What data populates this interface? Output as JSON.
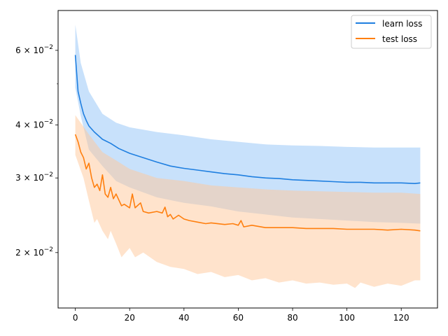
{
  "chart_data": {
    "type": "line",
    "title": "",
    "xlabel": "",
    "ylabel": "",
    "xlim": [
      -6.35,
      133.35
    ],
    "ylim": [
      0.0148,
      0.0745
    ],
    "yscale": "log",
    "x_ticks": [
      0,
      20,
      40,
      60,
      80,
      100,
      120
    ],
    "x_tick_labels": [
      "0",
      "20",
      "40",
      "60",
      "80",
      "100",
      "120"
    ],
    "y_major_ticks": [
      {
        "value": 0.02,
        "label": "2 × 10^-2",
        "base": "2 × 10",
        "exp": "−2"
      },
      {
        "value": 0.03,
        "label": "3 × 10^-2",
        "base": "3 × 10",
        "exp": "−2"
      },
      {
        "value": 0.04,
        "label": "4 × 10^-2",
        "base": "4 × 10",
        "exp": "−2"
      },
      {
        "value": 0.06,
        "label": "6 × 10^-2",
        "base": "6 × 10",
        "exp": "−2"
      }
    ],
    "y_minor_ticks": [
      0.05
    ],
    "grid": false,
    "legend": {
      "position": "upper-right"
    },
    "series": [
      {
        "name": "learn loss",
        "color": "#1f7fe0",
        "band_color": "#91c4f7",
        "mean": [
          [
            0,
            0.0585
          ],
          [
            1,
            0.048
          ],
          [
            2,
            0.045
          ],
          [
            3,
            0.0425
          ],
          [
            4,
            0.041
          ],
          [
            5,
            0.0398
          ],
          [
            7,
            0.0385
          ],
          [
            10,
            0.037
          ],
          [
            13,
            0.0362
          ],
          [
            16,
            0.0352
          ],
          [
            20,
            0.0343
          ],
          [
            25,
            0.0335
          ],
          [
            30,
            0.0327
          ],
          [
            35,
            0.032
          ],
          [
            40,
            0.0316
          ],
          [
            45,
            0.0313
          ],
          [
            50,
            0.031
          ],
          [
            55,
            0.0307
          ],
          [
            60,
            0.0305
          ],
          [
            65,
            0.0302
          ],
          [
            70,
            0.03
          ],
          [
            75,
            0.0299
          ],
          [
            80,
            0.0297
          ],
          [
            85,
            0.0296
          ],
          [
            90,
            0.0295
          ],
          [
            95,
            0.0294
          ],
          [
            100,
            0.0293
          ],
          [
            105,
            0.0293
          ],
          [
            110,
            0.0292
          ],
          [
            115,
            0.0292
          ],
          [
            120,
            0.0292
          ],
          [
            125,
            0.0291
          ],
          [
            127,
            0.0292
          ]
        ],
        "upper": [
          [
            0,
            0.069
          ],
          [
            2,
            0.056
          ],
          [
            5,
            0.048
          ],
          [
            10,
            0.0425
          ],
          [
            15,
            0.0405
          ],
          [
            20,
            0.0395
          ],
          [
            30,
            0.0385
          ],
          [
            40,
            0.0378
          ],
          [
            50,
            0.037
          ],
          [
            60,
            0.0365
          ],
          [
            70,
            0.036
          ],
          [
            80,
            0.0358
          ],
          [
            90,
            0.0357
          ],
          [
            100,
            0.0355
          ],
          [
            110,
            0.0354
          ],
          [
            120,
            0.0354
          ],
          [
            127,
            0.0354
          ]
        ],
        "lower": [
          [
            0,
            0.049
          ],
          [
            2,
            0.042
          ],
          [
            5,
            0.035
          ],
          [
            10,
            0.032
          ],
          [
            15,
            0.0295
          ],
          [
            20,
            0.0285
          ],
          [
            30,
            0.027
          ],
          [
            40,
            0.0262
          ],
          [
            50,
            0.0257
          ],
          [
            60,
            0.025
          ],
          [
            70,
            0.0246
          ],
          [
            80,
            0.0242
          ],
          [
            90,
            0.024
          ],
          [
            100,
            0.0238
          ],
          [
            110,
            0.0236
          ],
          [
            120,
            0.0235
          ],
          [
            127,
            0.0234
          ]
        ]
      },
      {
        "name": "test loss",
        "color": "#ff7f0e",
        "band_color": "#ffc89a",
        "mean": [
          [
            0,
            0.038
          ],
          [
            1,
            0.0365
          ],
          [
            2,
            0.0345
          ],
          [
            3,
            0.0335
          ],
          [
            4,
            0.0315
          ],
          [
            5,
            0.0325
          ],
          [
            6,
            0.03
          ],
          [
            7,
            0.0285
          ],
          [
            8,
            0.029
          ],
          [
            9,
            0.028
          ],
          [
            10,
            0.0305
          ],
          [
            11,
            0.0275
          ],
          [
            12,
            0.027
          ],
          [
            13,
            0.0285
          ],
          [
            14,
            0.0268
          ],
          [
            15,
            0.0275
          ],
          [
            17,
            0.0258
          ],
          [
            18,
            0.026
          ],
          [
            20,
            0.0255
          ],
          [
            21,
            0.0275
          ],
          [
            22,
            0.0255
          ],
          [
            24,
            0.0262
          ],
          [
            25,
            0.025
          ],
          [
            27,
            0.0248
          ],
          [
            30,
            0.025
          ],
          [
            32,
            0.0248
          ],
          [
            33,
            0.0256
          ],
          [
            34,
            0.0243
          ],
          [
            35,
            0.0246
          ],
          [
            36,
            0.024
          ],
          [
            38,
            0.0245
          ],
          [
            40,
            0.024
          ],
          [
            42,
            0.0238
          ],
          [
            45,
            0.0236
          ],
          [
            48,
            0.0234
          ],
          [
            50,
            0.0235
          ],
          [
            55,
            0.0233
          ],
          [
            58,
            0.0234
          ],
          [
            60,
            0.0232
          ],
          [
            61,
            0.0238
          ],
          [
            62,
            0.023
          ],
          [
            65,
            0.0232
          ],
          [
            70,
            0.0229
          ],
          [
            75,
            0.0229
          ],
          [
            80,
            0.0229
          ],
          [
            85,
            0.0228
          ],
          [
            90,
            0.0228
          ],
          [
            95,
            0.0228
          ],
          [
            100,
            0.0227
          ],
          [
            105,
            0.0227
          ],
          [
            110,
            0.0227
          ],
          [
            115,
            0.0226
          ],
          [
            120,
            0.0227
          ],
          [
            125,
            0.0226
          ],
          [
            127,
            0.0225
          ]
        ],
        "upper": [
          [
            0,
            0.0422
          ],
          [
            5,
            0.038
          ],
          [
            10,
            0.0345
          ],
          [
            15,
            0.033
          ],
          [
            20,
            0.0315
          ],
          [
            30,
            0.03
          ],
          [
            40,
            0.0295
          ],
          [
            50,
            0.0288
          ],
          [
            60,
            0.0285
          ],
          [
            70,
            0.0282
          ],
          [
            80,
            0.028
          ],
          [
            90,
            0.0279
          ],
          [
            100,
            0.0278
          ],
          [
            110,
            0.0277
          ],
          [
            120,
            0.0277
          ],
          [
            127,
            0.0275
          ]
        ],
        "lower": [
          [
            0,
            0.034
          ],
          [
            3,
            0.03
          ],
          [
            5,
            0.0265
          ],
          [
            7,
            0.0235
          ],
          [
            8,
            0.024
          ],
          [
            10,
            0.0225
          ],
          [
            12,
            0.0215
          ],
          [
            13,
            0.0225
          ],
          [
            15,
            0.021
          ],
          [
            17,
            0.0195
          ],
          [
            20,
            0.0205
          ],
          [
            22,
            0.0195
          ],
          [
            25,
            0.02
          ],
          [
            30,
            0.019
          ],
          [
            35,
            0.0185
          ],
          [
            40,
            0.0183
          ],
          [
            45,
            0.0178
          ],
          [
            50,
            0.018
          ],
          [
            55,
            0.0175
          ],
          [
            60,
            0.0177
          ],
          [
            65,
            0.0172
          ],
          [
            70,
            0.0174
          ],
          [
            75,
            0.017
          ],
          [
            80,
            0.0172
          ],
          [
            85,
            0.0169
          ],
          [
            90,
            0.017
          ],
          [
            95,
            0.0168
          ],
          [
            100,
            0.0169
          ],
          [
            103,
            0.0165
          ],
          [
            105,
            0.017
          ],
          [
            110,
            0.0166
          ],
          [
            115,
            0.0169
          ],
          [
            120,
            0.0167
          ],
          [
            125,
            0.0172
          ],
          [
            127,
            0.0172
          ]
        ]
      }
    ]
  }
}
